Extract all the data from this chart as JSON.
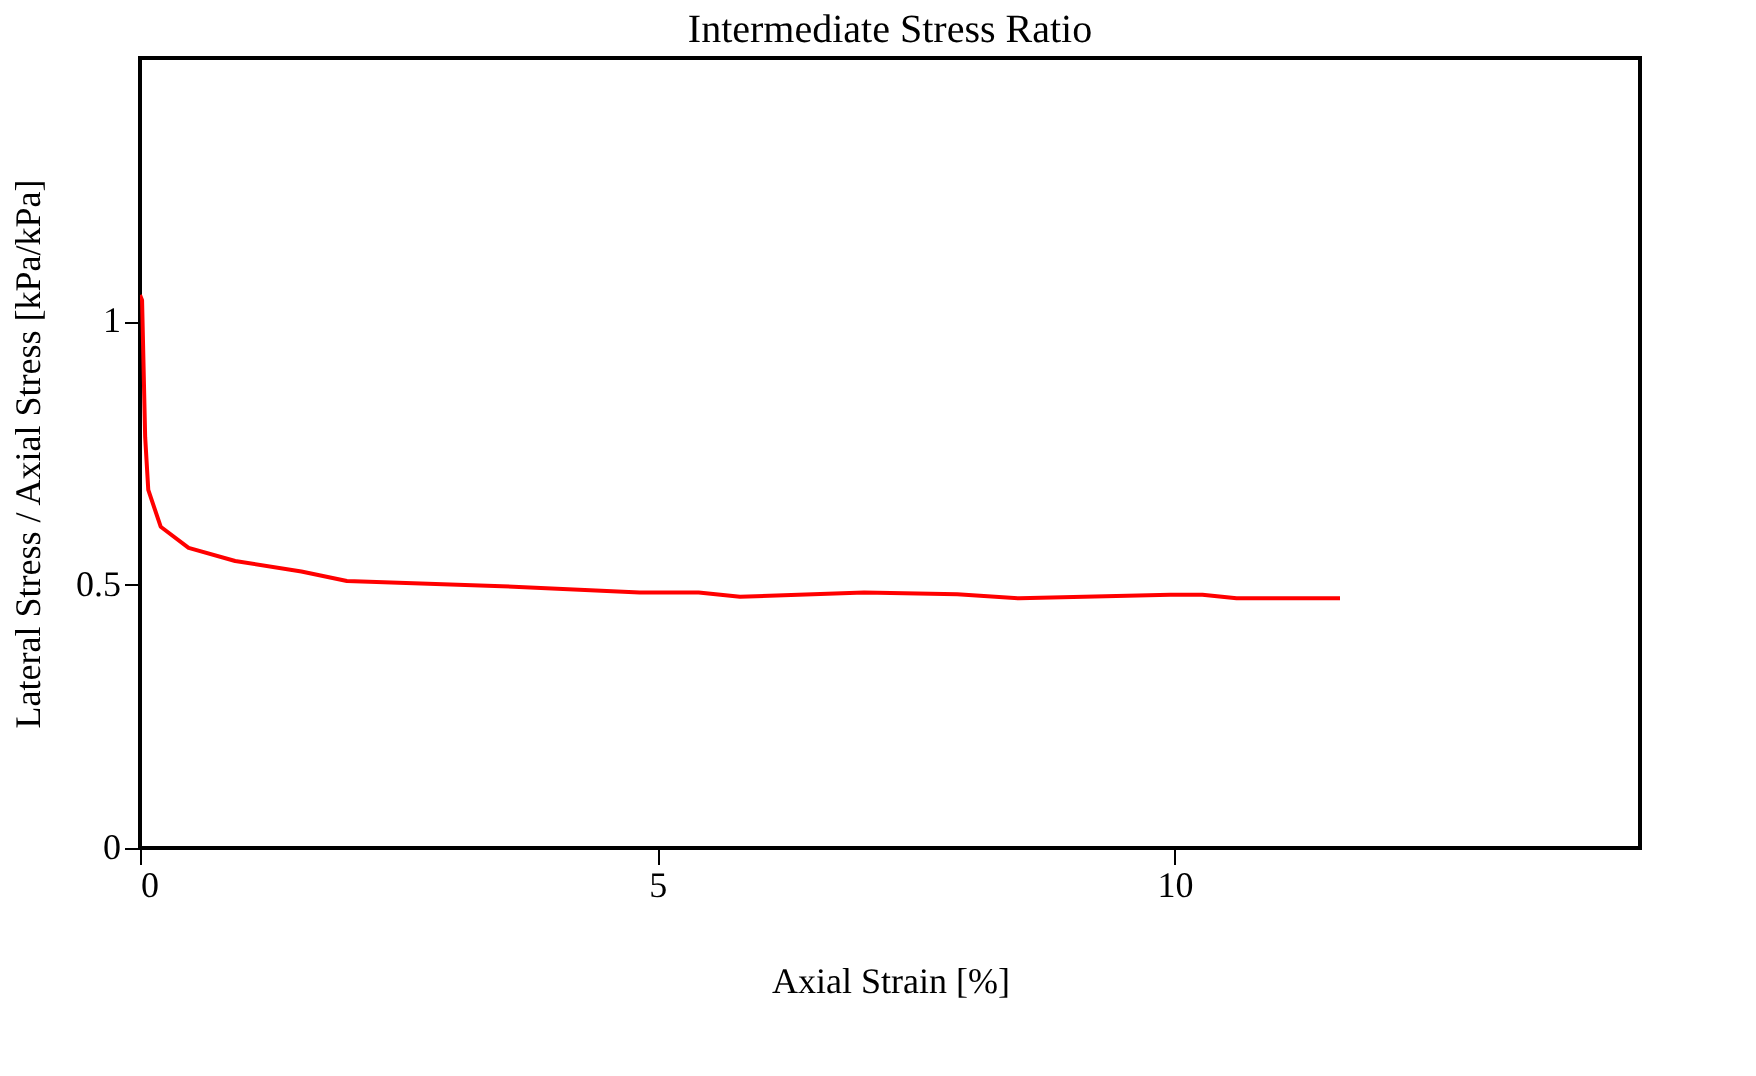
{
  "chart_data": {
    "type": "line",
    "title": "Intermediate Stress Ratio",
    "xlabel": "Axial Strain [%]",
    "ylabel": "Lateral Stress / Axial Stress [kPa/kPa]",
    "x": [
      0,
      0.02,
      0.05,
      0.08,
      0.2,
      0.47,
      0.92,
      1.56,
      2.0,
      3.5,
      4.83,
      5.4,
      5.8,
      7.0,
      7.9,
      8.5,
      9.96,
      10.27,
      10.6,
      11.6
    ],
    "series": [
      {
        "color": "#ff0000",
        "values": [
          1.05,
          1.04,
          0.78,
          0.68,
          0.61,
          0.57,
          0.545,
          0.525,
          0.507,
          0.497,
          0.485,
          0.485,
          0.477,
          0.485,
          0.482,
          0.474,
          0.481,
          0.481,
          0.474,
          0.474
        ]
      }
    ],
    "xlim": [
      0,
      14.5
    ],
    "xticks": [
      0,
      5,
      10
    ],
    "ylim": [
      0,
      1.5
    ],
    "yticks": [
      0,
      0.5,
      1
    ],
    "grid": false,
    "marker": "none",
    "line_style": "solid"
  }
}
